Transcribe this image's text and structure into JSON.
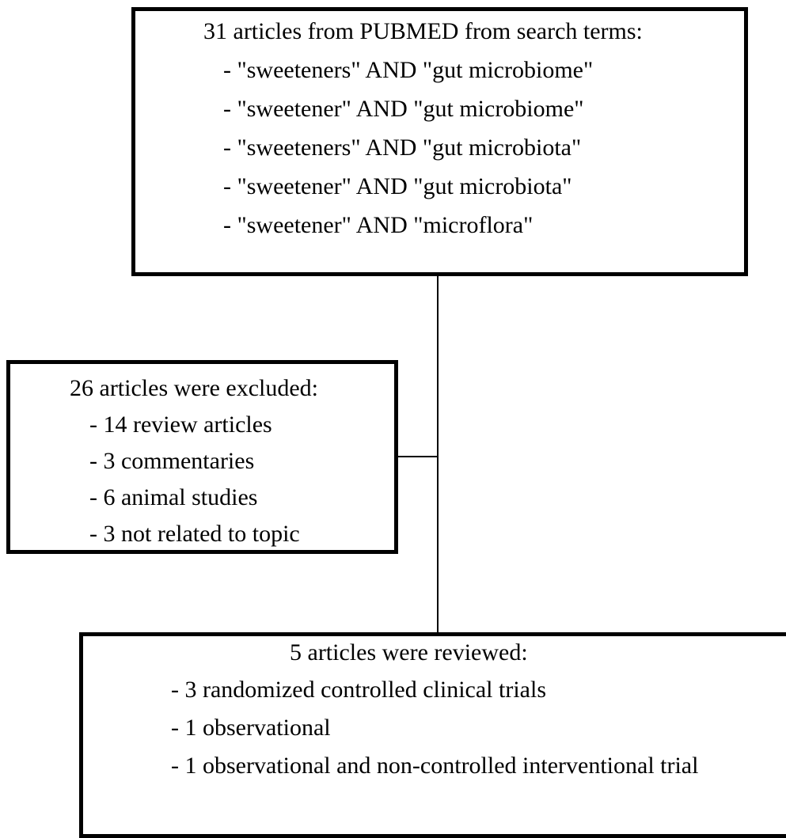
{
  "search_box": {
    "heading": "31 articles from PUBMED from search terms:",
    "items": [
      "- \"sweeteners\" AND \"gut microbiome\"",
      "- \"sweetener\" AND \"gut microbiome\"",
      "- \"sweeteners\" AND \"gut microbiota\"",
      "- \"sweetener\" AND \"gut microbiota\"",
      "- \"sweetener\" AND \"microflora\""
    ]
  },
  "excluded_box": {
    "heading": "26 articles were excluded:",
    "items": [
      "- 14 review articles",
      "- 3 commentaries",
      "- 6 animal studies",
      "- 3 not related to topic"
    ]
  },
  "reviewed_box": {
    "heading": "5 articles were reviewed:",
    "items": [
      "- 3 randomized controlled clinical trials",
      "- 1 observational",
      "- 1 observational and non-controlled interventional trial"
    ]
  }
}
